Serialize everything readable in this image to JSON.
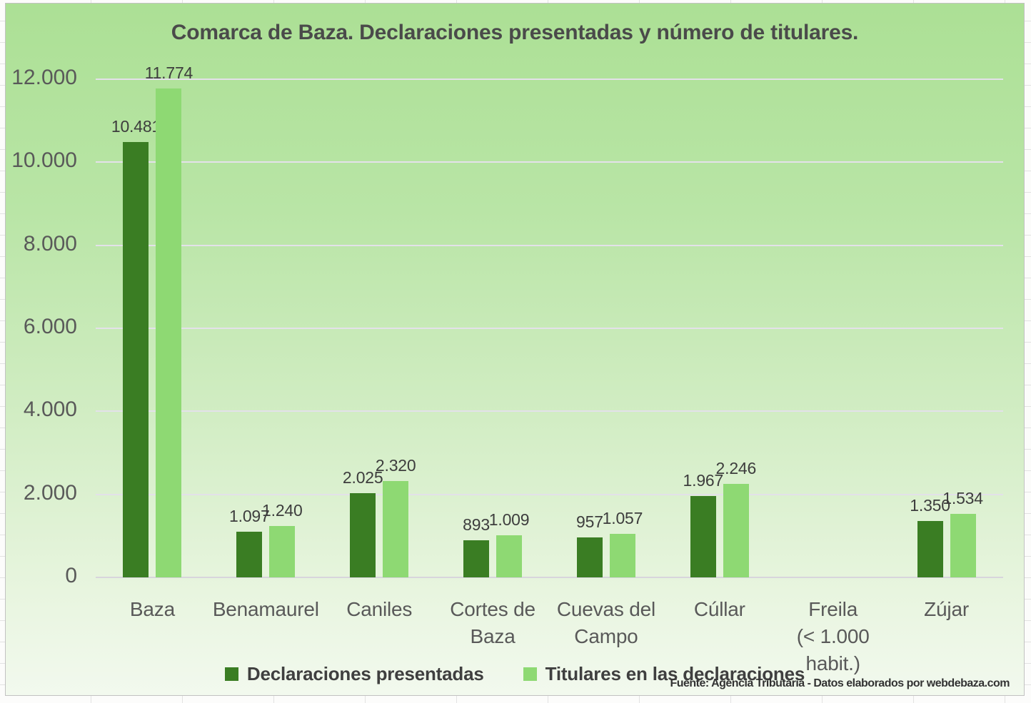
{
  "title": "Comarca de Baza. Declaraciones presentadas y número de titulares.",
  "source_note": "Fuente: Agencia Tributaria - Datos elaborados por webdebaza.com",
  "colors": {
    "series1": "#3a7d23",
    "series2": "#8ed973",
    "background_top": "#ace095",
    "background_bottom": "#f2f9ee",
    "gridline": "#e3e1e9",
    "axis_text": "#595959",
    "label_text": "#3d3d3d"
  },
  "legend": [
    {
      "label": "Declaraciones presentadas",
      "color": "#3a7d23"
    },
    {
      "label": "Titulares en las declaraciones",
      "color": "#8ed973"
    }
  ],
  "chart_data": {
    "type": "bar",
    "title": "Comarca de Baza. Declaraciones presentadas y número de titulares.",
    "categories": [
      "Baza",
      "Benamaurel",
      "Caniles",
      "Cortes de Baza",
      "Cuevas del Campo",
      "Cúllar",
      "Freila (< 1.000 habit.)",
      "Zújar"
    ],
    "categories_display": [
      "Baza",
      "Benamaurel",
      "Caniles",
      "Cortes de\nBaza",
      "Cuevas del\nCampo",
      "Cúllar",
      "Freila\n(< 1.000\nhabit.)",
      "Zújar"
    ],
    "series": [
      {
        "name": "Declaraciones presentadas",
        "color": "#3a7d23",
        "values": [
          10481,
          1097,
          2025,
          893,
          957,
          1967,
          null,
          1350
        ]
      },
      {
        "name": "Titulares en las declaraciones",
        "color": "#8ed973",
        "values": [
          11774,
          1240,
          2320,
          1009,
          1057,
          2246,
          null,
          1534
        ]
      }
    ],
    "data_labels": [
      [
        "10.481",
        "1.097",
        "2.025",
        "893",
        "957",
        "1.967",
        "",
        "1.350"
      ],
      [
        "11.774",
        "1.240",
        "2.320",
        "1.009",
        "1.057",
        "2.246",
        "",
        "1.534"
      ]
    ],
    "y_ticks": [
      "0",
      "2.000",
      "4.000",
      "6.000",
      "8.000",
      "10.000",
      "12.000"
    ],
    "ylim": [
      0,
      12000
    ],
    "grid": true,
    "legend_position": "bottom"
  }
}
